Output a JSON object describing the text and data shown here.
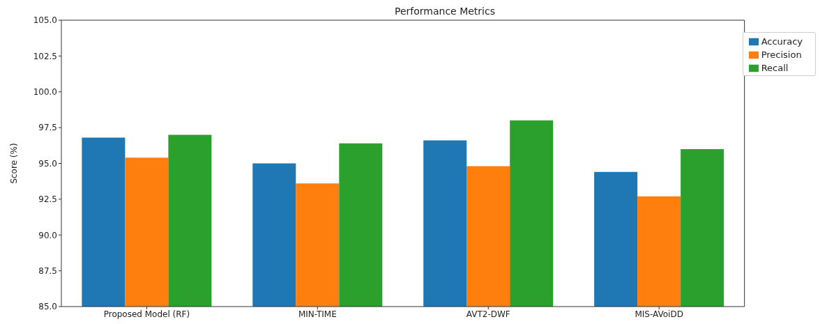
{
  "chart_data": {
    "type": "bar",
    "title": "Performance Metrics",
    "ylabel": "Score (%)",
    "categories": [
      "Proposed Model (RF)",
      "MIN-TIME",
      "AVT2-DWF",
      "MIS-AVoiDD"
    ],
    "series": [
      {
        "name": "Accuracy",
        "color": "#1f77b4",
        "values": [
          96.8,
          95.0,
          96.6,
          94.4
        ]
      },
      {
        "name": "Precision",
        "color": "#ff7f0e",
        "values": [
          95.4,
          93.6,
          94.8,
          92.7
        ]
      },
      {
        "name": "Recall",
        "color": "#2ca02c",
        "values": [
          97.0,
          96.4,
          98.0,
          96.0
        ]
      }
    ],
    "ylim": [
      85,
      105
    ],
    "yticks": [
      {
        "value": 85,
        "label": "85.0"
      },
      {
        "value": 87.5,
        "label": "87.5"
      },
      {
        "value": 90,
        "label": "90.0"
      },
      {
        "value": 92.5,
        "label": "92.5"
      },
      {
        "value": 95,
        "label": "95.0"
      },
      {
        "value": 97.5,
        "label": "97.5"
      },
      {
        "value": 100,
        "label": "100.0"
      },
      {
        "value": 102.5,
        "label": "102.5"
      },
      {
        "value": 105,
        "label": "105.0"
      }
    ],
    "grid": false,
    "legend": "top right"
  }
}
